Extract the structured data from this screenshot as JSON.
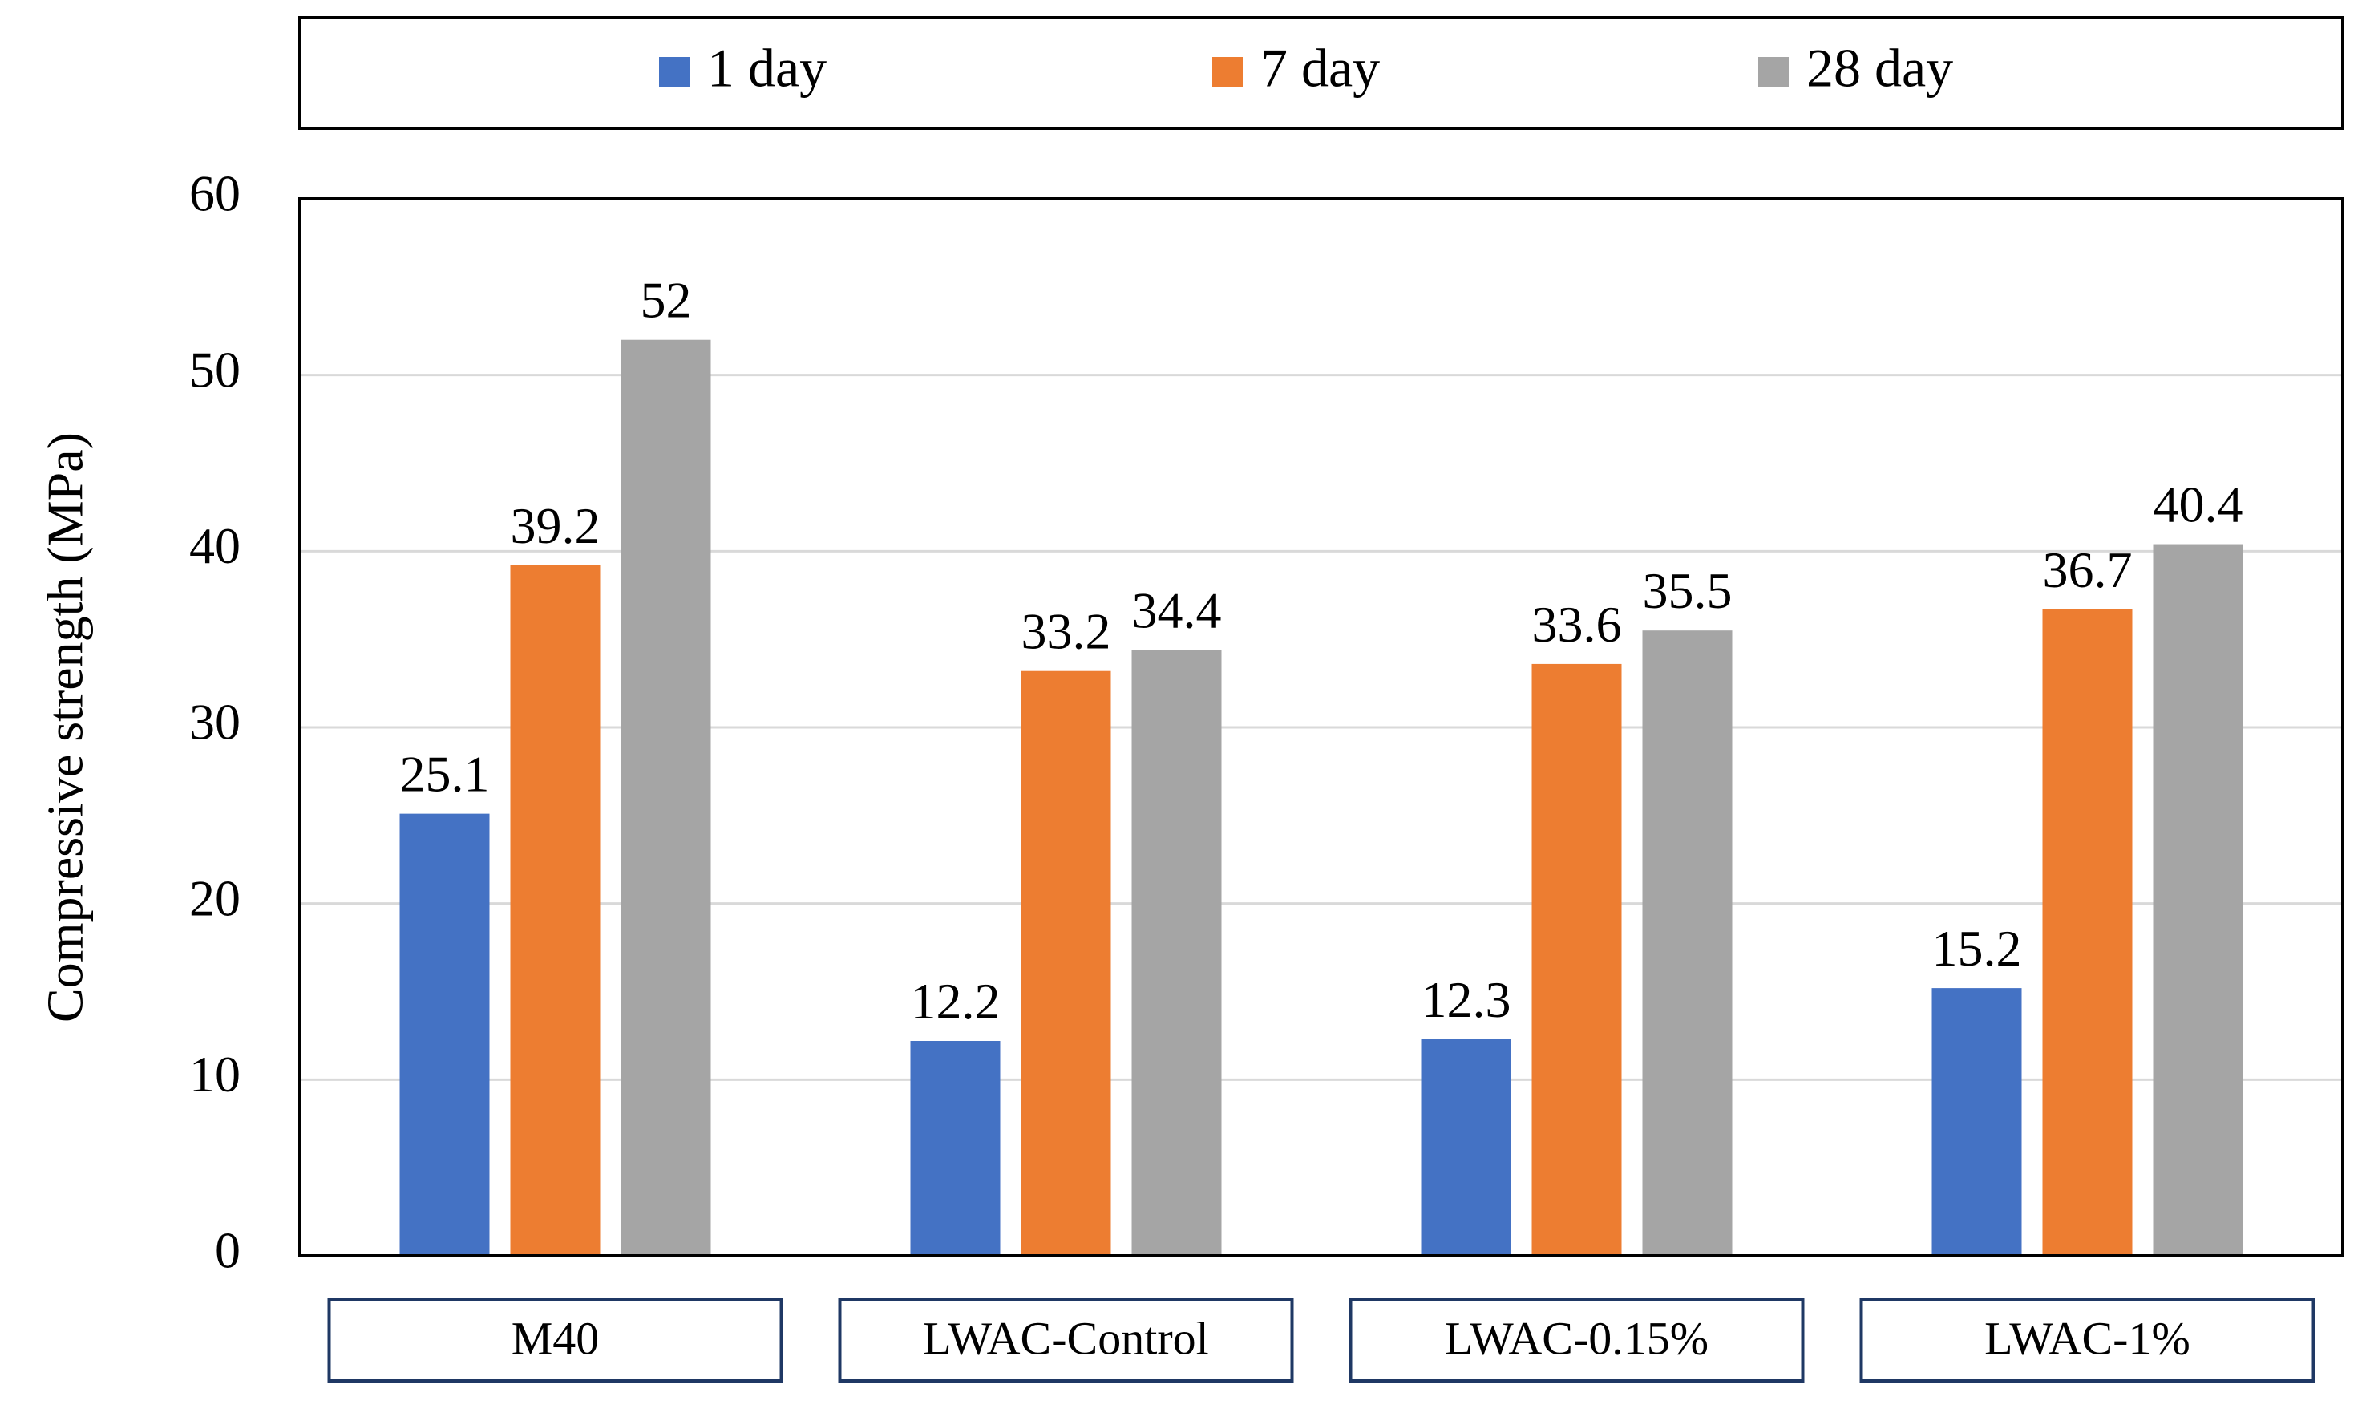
{
  "chart_data": {
    "type": "bar",
    "title": "",
    "xlabel": "",
    "ylabel": "Compressive strength (MPa)",
    "ylim": [
      0,
      60
    ],
    "ytick_step": 10,
    "grid": true,
    "legend_position": "top",
    "categories": [
      "M40",
      "LWAC-Control",
      "LWAC-0.15%",
      "LWAC-1%"
    ],
    "series": [
      {
        "name": "1 day",
        "color": "#4472C4",
        "values": [
          25.1,
          12.2,
          12.3,
          15.2
        ],
        "labels": [
          "25.1",
          "12.2",
          "12.3",
          "15.2"
        ]
      },
      {
        "name": "7 day",
        "color": "#ED7D31",
        "values": [
          39.2,
          33.2,
          33.6,
          36.7
        ],
        "labels": [
          "39.2",
          "33.2",
          "33.6",
          "36.7"
        ]
      },
      {
        "name": "28 day",
        "color": "#A5A5A5",
        "values": [
          52,
          34.4,
          35.5,
          40.4
        ],
        "labels": [
          "52",
          "34.4",
          "35.5",
          "40.4"
        ]
      }
    ]
  }
}
